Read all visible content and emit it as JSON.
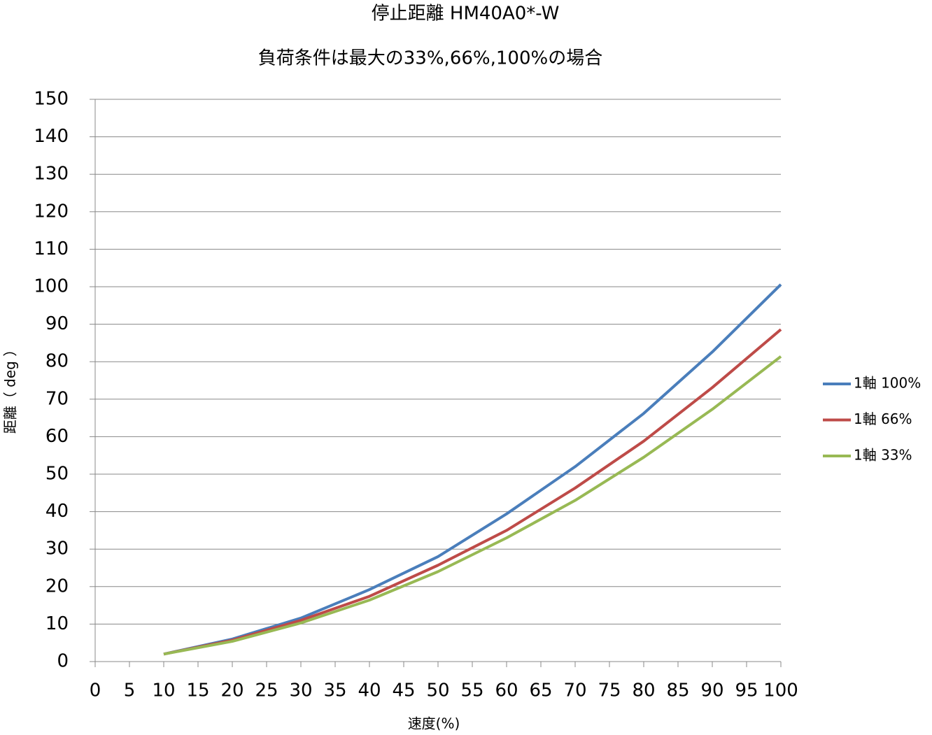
{
  "chart_data": {
    "type": "line",
    "title": "停止距離 HM40A0*-W",
    "subtitle": "負荷条件は最大の33%,66%,100%の場合",
    "x_label": "速度(%)",
    "y_label": "距離（ deg ）",
    "x": [
      10,
      20,
      30,
      40,
      50,
      60,
      70,
      80,
      90,
      100
    ],
    "series": [
      {
        "name": "1軸 100%",
        "color": "#4a7ebb",
        "values": [
          2,
          6,
          11.6,
          19.2,
          28,
          39.4,
          52,
          66.2,
          82.6,
          100.6
        ]
      },
      {
        "name": "1軸 66%",
        "color": "#be4b48",
        "values": [
          2,
          5.7,
          11,
          17.4,
          25.7,
          35,
          46.3,
          58.8,
          73.1,
          88.6
        ]
      },
      {
        "name": "1軸 33%",
        "color": "#98b954",
        "values": [
          2,
          5.4,
          10.3,
          16.4,
          24,
          33,
          43,
          54.5,
          67.3,
          81.4
        ]
      }
    ],
    "xlim": [
      0,
      100
    ],
    "xticks": [
      0,
      5,
      10,
      15,
      20,
      25,
      30,
      35,
      40,
      45,
      50,
      55,
      60,
      65,
      70,
      75,
      80,
      85,
      90,
      95,
      100
    ],
    "ylim": [
      0,
      150
    ],
    "yticks": [
      0,
      10,
      20,
      30,
      40,
      50,
      60,
      70,
      80,
      90,
      100,
      110,
      120,
      130,
      140,
      150
    ],
    "grid": true,
    "legend": "right"
  }
}
